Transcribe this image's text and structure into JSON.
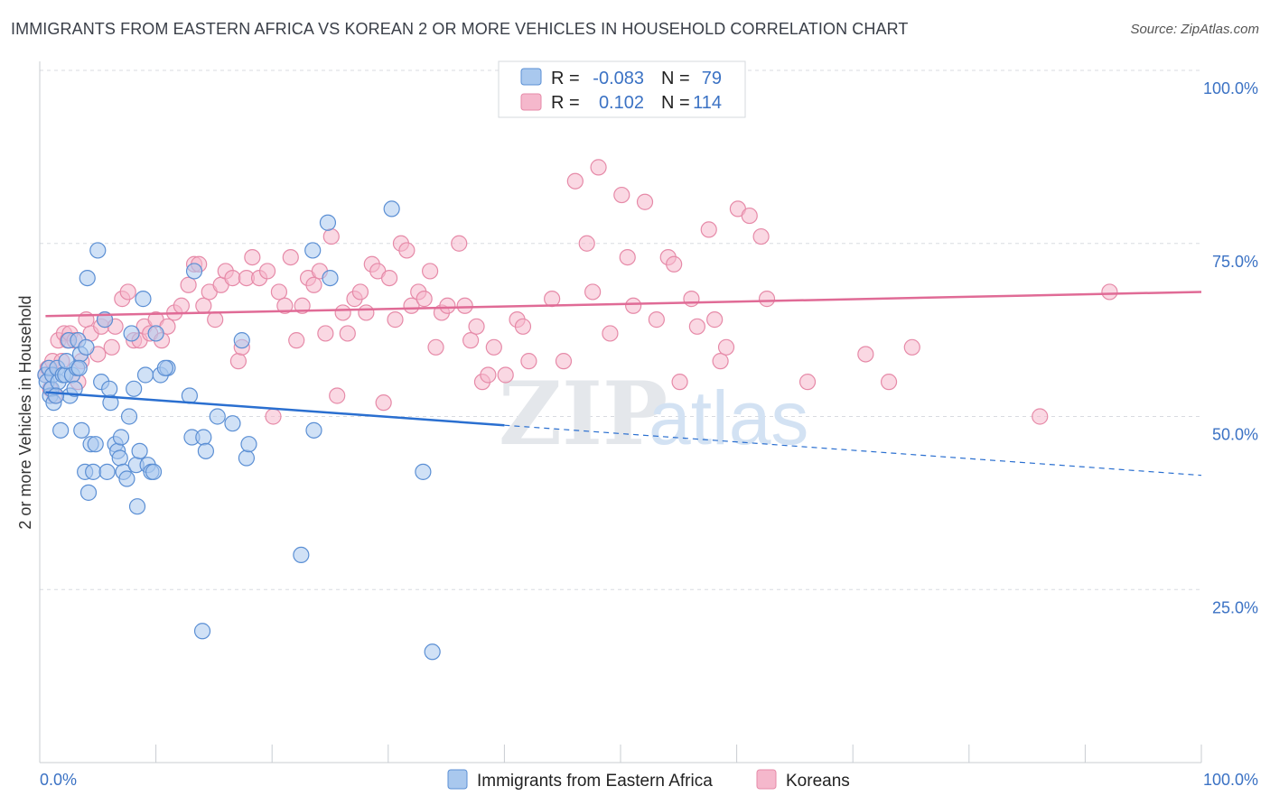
{
  "title": "IMMIGRANTS FROM EASTERN AFRICA VS KOREAN 2 OR MORE VEHICLES IN HOUSEHOLD CORRELATION CHART",
  "source": "Source: ZipAtlas.com",
  "watermark": {
    "zip": "ZIP",
    "atlas": "atlas"
  },
  "colors": {
    "blue_fill": "#a9c8ee",
    "blue_stroke": "#5b8fd4",
    "blue_line": "#2a6fd0",
    "pink_fill": "#f5b8cc",
    "pink_stroke": "#e68aa8",
    "pink_line": "#e06b96",
    "tick_label": "#3b72c4",
    "grid": "#d8dbe0"
  },
  "legend": {
    "rows": [
      {
        "r_label": "R =",
        "r_value": "-0.083",
        "n_label": "N =",
        "n_value": "79"
      },
      {
        "r_label": "R =",
        "r_value": "0.102",
        "n_label": "N =",
        "n_value": "114"
      }
    ]
  },
  "chart_data": {
    "type": "scatter",
    "xlabel": "",
    "ylabel": "2 or more Vehicles in Household",
    "xlim": [
      0,
      100
    ],
    "ylim": [
      0,
      100
    ],
    "x_tick_labels": [
      "0.0%",
      "100.0%"
    ],
    "y_tick_labels": [
      "25.0%",
      "50.0%",
      "75.0%",
      "100.0%"
    ],
    "y_ticks": [
      25,
      50,
      75,
      100
    ],
    "grid": true,
    "legend_position": "top-center",
    "series": [
      {
        "name": "Immigrants from Eastern Africa",
        "color": "#a9c8ee",
        "trend": {
          "x0": 0.5,
          "y0": 53.5,
          "x1": 100,
          "y1": 41.5,
          "solid_until": 40
        },
        "points": [
          [
            0.5,
            56
          ],
          [
            0.6,
            55
          ],
          [
            0.8,
            57
          ],
          [
            0.9,
            53
          ],
          [
            1.0,
            54
          ],
          [
            1.1,
            56
          ],
          [
            1.2,
            52
          ],
          [
            1.5,
            57
          ],
          [
            1.6,
            55
          ],
          [
            1.8,
            48
          ],
          [
            2.0,
            56
          ],
          [
            2.2,
            56
          ],
          [
            2.5,
            61
          ],
          [
            2.6,
            53
          ],
          [
            2.8,
            56
          ],
          [
            3.0,
            54
          ],
          [
            3.2,
            57
          ],
          [
            3.3,
            61
          ],
          [
            3.5,
            59
          ],
          [
            3.6,
            48
          ],
          [
            3.9,
            42
          ],
          [
            4.1,
            70
          ],
          [
            4.2,
            39
          ],
          [
            4.4,
            46
          ],
          [
            4.6,
            42
          ],
          [
            4.8,
            46
          ],
          [
            5.0,
            74
          ],
          [
            5.3,
            55
          ],
          [
            5.6,
            64
          ],
          [
            5.8,
            42
          ],
          [
            6.1,
            52
          ],
          [
            6.5,
            46
          ],
          [
            6.7,
            45
          ],
          [
            6.9,
            44
          ],
          [
            7.0,
            47
          ],
          [
            7.2,
            42
          ],
          [
            7.5,
            41
          ],
          [
            7.7,
            50
          ],
          [
            7.9,
            62
          ],
          [
            8.1,
            54
          ],
          [
            8.3,
            43
          ],
          [
            8.4,
            37
          ],
          [
            8.6,
            45
          ],
          [
            8.9,
            67
          ],
          [
            9.1,
            56
          ],
          [
            9.3,
            43
          ],
          [
            9.6,
            42
          ],
          [
            9.8,
            42
          ],
          [
            10.0,
            62
          ],
          [
            10.4,
            56
          ],
          [
            11.0,
            57
          ],
          [
            12.9,
            53
          ],
          [
            13.1,
            47
          ],
          [
            13.3,
            71
          ],
          [
            14.1,
            47
          ],
          [
            14.3,
            45
          ],
          [
            14.0,
            19
          ],
          [
            15.3,
            50
          ],
          [
            16.6,
            49
          ],
          [
            17.4,
            61
          ],
          [
            17.8,
            44
          ],
          [
            18.0,
            46
          ],
          [
            22.5,
            30
          ],
          [
            23.5,
            74
          ],
          [
            23.6,
            48
          ],
          [
            24.8,
            78
          ],
          [
            25.0,
            70
          ],
          [
            30.3,
            80
          ],
          [
            33.0,
            42
          ],
          [
            33.8,
            16
          ],
          [
            6.0,
            54
          ],
          [
            2.3,
            58
          ],
          [
            1.4,
            53
          ],
          [
            10.8,
            57
          ],
          [
            4.0,
            60
          ],
          [
            3.4,
            57
          ]
        ]
      },
      {
        "name": "Koreans",
        "color": "#f5b8cc",
        "trend": {
          "x0": 0.5,
          "y0": 64.5,
          "x1": 100,
          "y1": 68
        },
        "points": [
          [
            0.5,
            56
          ],
          [
            0.7,
            57
          ],
          [
            0.9,
            54
          ],
          [
            1.1,
            58
          ],
          [
            1.3,
            53
          ],
          [
            1.6,
            61
          ],
          [
            1.9,
            58
          ],
          [
            2.1,
            62
          ],
          [
            2.4,
            61
          ],
          [
            2.6,
            62
          ],
          [
            3.0,
            61
          ],
          [
            3.3,
            55
          ],
          [
            3.6,
            58
          ],
          [
            4.0,
            64
          ],
          [
            4.4,
            62
          ],
          [
            5.0,
            59
          ],
          [
            5.3,
            63
          ],
          [
            5.6,
            64
          ],
          [
            6.2,
            60
          ],
          [
            6.5,
            63
          ],
          [
            7.1,
            67
          ],
          [
            7.6,
            68
          ],
          [
            8.1,
            61
          ],
          [
            8.6,
            61
          ],
          [
            9.0,
            63
          ],
          [
            9.5,
            62
          ],
          [
            10.0,
            64
          ],
          [
            10.5,
            61
          ],
          [
            11.0,
            63
          ],
          [
            11.6,
            65
          ],
          [
            12.2,
            66
          ],
          [
            12.8,
            69
          ],
          [
            13.3,
            72
          ],
          [
            13.7,
            72
          ],
          [
            14.1,
            66
          ],
          [
            14.6,
            68
          ],
          [
            15.1,
            64
          ],
          [
            15.6,
            69
          ],
          [
            16.0,
            71
          ],
          [
            16.6,
            70
          ],
          [
            17.1,
            58
          ],
          [
            17.4,
            60
          ],
          [
            17.8,
            70
          ],
          [
            18.3,
            73
          ],
          [
            18.9,
            70
          ],
          [
            19.6,
            71
          ],
          [
            20.1,
            50
          ],
          [
            20.6,
            68
          ],
          [
            21.1,
            66
          ],
          [
            21.6,
            73
          ],
          [
            22.1,
            61
          ],
          [
            22.6,
            66
          ],
          [
            23.1,
            70
          ],
          [
            23.6,
            69
          ],
          [
            24.1,
            71
          ],
          [
            24.6,
            62
          ],
          [
            25.1,
            76
          ],
          [
            25.6,
            53
          ],
          [
            26.1,
            65
          ],
          [
            26.5,
            62
          ],
          [
            27.1,
            67
          ],
          [
            27.6,
            68
          ],
          [
            28.1,
            65
          ],
          [
            28.6,
            72
          ],
          [
            29.1,
            71
          ],
          [
            29.6,
            52
          ],
          [
            30.1,
            70
          ],
          [
            30.6,
            64
          ],
          [
            31.1,
            75
          ],
          [
            31.6,
            74
          ],
          [
            32.0,
            66
          ],
          [
            32.6,
            68
          ],
          [
            33.1,
            67
          ],
          [
            33.6,
            71
          ],
          [
            34.1,
            60
          ],
          [
            34.6,
            65
          ],
          [
            35.1,
            66
          ],
          [
            36.1,
            75
          ],
          [
            36.6,
            66
          ],
          [
            37.1,
            61
          ],
          [
            37.6,
            63
          ],
          [
            38.1,
            55
          ],
          [
            38.6,
            56
          ],
          [
            39.1,
            60
          ],
          [
            40.1,
            56
          ],
          [
            41.1,
            64
          ],
          [
            41.6,
            63
          ],
          [
            42.1,
            58
          ],
          [
            44.1,
            67
          ],
          [
            45.1,
            58
          ],
          [
            46.1,
            84
          ],
          [
            47.1,
            75
          ],
          [
            47.6,
            68
          ],
          [
            48.1,
            86
          ],
          [
            49.1,
            62
          ],
          [
            50.1,
            82
          ],
          [
            50.6,
            73
          ],
          [
            51.1,
            66
          ],
          [
            52.1,
            81
          ],
          [
            53.1,
            64
          ],
          [
            54.1,
            73
          ],
          [
            54.6,
            72
          ],
          [
            55.1,
            55
          ],
          [
            56.1,
            67
          ],
          [
            56.6,
            63
          ],
          [
            57.6,
            77
          ],
          [
            58.1,
            64
          ],
          [
            58.6,
            58
          ],
          [
            59.1,
            60
          ],
          [
            60.1,
            80
          ],
          [
            61.1,
            79
          ],
          [
            62.1,
            76
          ],
          [
            62.6,
            67
          ],
          [
            66.1,
            55
          ],
          [
            71.1,
            59
          ],
          [
            73.1,
            55
          ],
          [
            75.1,
            60
          ],
          [
            86.1,
            50
          ],
          [
            92.1,
            68
          ]
        ]
      }
    ]
  },
  "bottom_legend": [
    {
      "label": "Immigrants from Eastern Africa"
    },
    {
      "label": "Koreans"
    }
  ]
}
